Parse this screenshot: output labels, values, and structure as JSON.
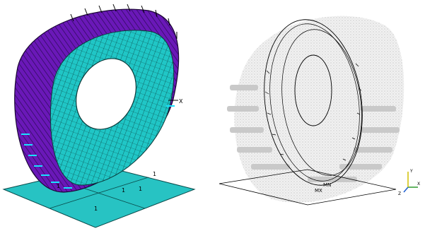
{
  "left_view": {
    "floor_node_labels": [
      "1",
      "1",
      "1",
      "1",
      "1"
    ],
    "axis_label": "X",
    "colors": {
      "tread": "#6a18b8",
      "tread_edge": "#2a0a55",
      "sidewall": "#20c6c6",
      "floor": "#27c3c3",
      "constraint": "#19e0ff"
    }
  },
  "right_view": {
    "ground_labels": [
      "MX",
      "MN"
    ],
    "triad_labels": [
      "X",
      "Y",
      "Z"
    ],
    "colors": {
      "shadow": "#c9c9c9",
      "outline": "#000000",
      "triad_x": "#2f9a2f",
      "triad_y": "#d0c000",
      "triad_z": "#1f5fd0"
    }
  }
}
